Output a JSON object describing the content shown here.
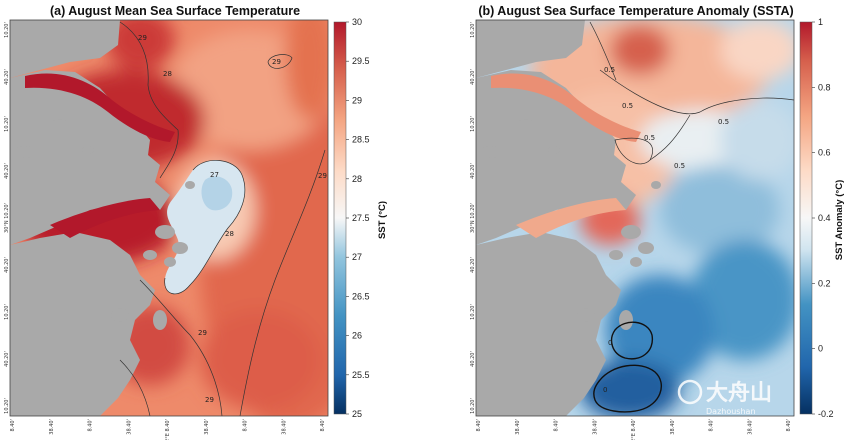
{
  "chart_data": [
    {
      "type": "heatmap",
      "title": "(a) August Mean Sea Surface Temperature",
      "colorbar_label": "SST (°C)",
      "colorbar_range": [
        25,
        30
      ],
      "colorbar_ticks": [
        "25",
        "25.5",
        "26",
        "26.5",
        "27",
        "27.5",
        "28",
        "28.5",
        "29",
        "29.5",
        "30"
      ],
      "contour_labels": [
        "29",
        "29",
        "28",
        "28",
        "27",
        "29",
        "29",
        "29"
      ],
      "y_tick_labels": [
        "10.20'",
        "40.20'",
        "10.20'",
        "40.20'",
        "30°N 10.20'",
        "40.20'",
        "10.20'",
        "40.20'",
        "10.20'"
      ],
      "x_tick_labels": [
        "8.40'",
        "38.40'",
        "8.40'",
        "38.40'",
        "122°E 8.40'",
        "38.40'",
        "8.40'",
        "38.40'",
        "8.40'"
      ],
      "description_of_field": "Warm (29-30 °C) in coastal estuary areas, ~28.5-29 °C offshore, a cool patch (~27 °C) near the island cluster"
    },
    {
      "type": "heatmap",
      "title": "(b) August Sea Surface Temperature Anomaly (SSTA)",
      "colorbar_label": "SST Anomaly (°C)",
      "colorbar_range": [
        -0.2,
        1
      ],
      "colorbar_ticks": [
        "-0.2",
        "0",
        "0.2",
        "0.4",
        "0.6",
        "0.8",
        "1"
      ],
      "contour_labels": [
        "0.5",
        "0.5",
        "0.5",
        "0.5",
        "0.5",
        "0",
        "0"
      ],
      "y_tick_labels": [
        "10.20'",
        "40.20'",
        "10.20'",
        "40.20'",
        "30°N 10.20'",
        "40.20'",
        "10.20'",
        "40.20'",
        "10.20'"
      ],
      "x_tick_labels": [
        "8.40'",
        "38.40'",
        "8.40'",
        "38.40'",
        "122°E 8.40'",
        "38.40'",
        "8.40'",
        "38.40'",
        "8.40'"
      ],
      "description_of_field": "Positive anomaly (0.6-1 °C) near the coast and northern waters, near-zero/negative (blue) over the southern and eastern offshore area"
    }
  ],
  "watermark": {
    "text": "大舟山",
    "subtext": "Dazhoushan"
  }
}
